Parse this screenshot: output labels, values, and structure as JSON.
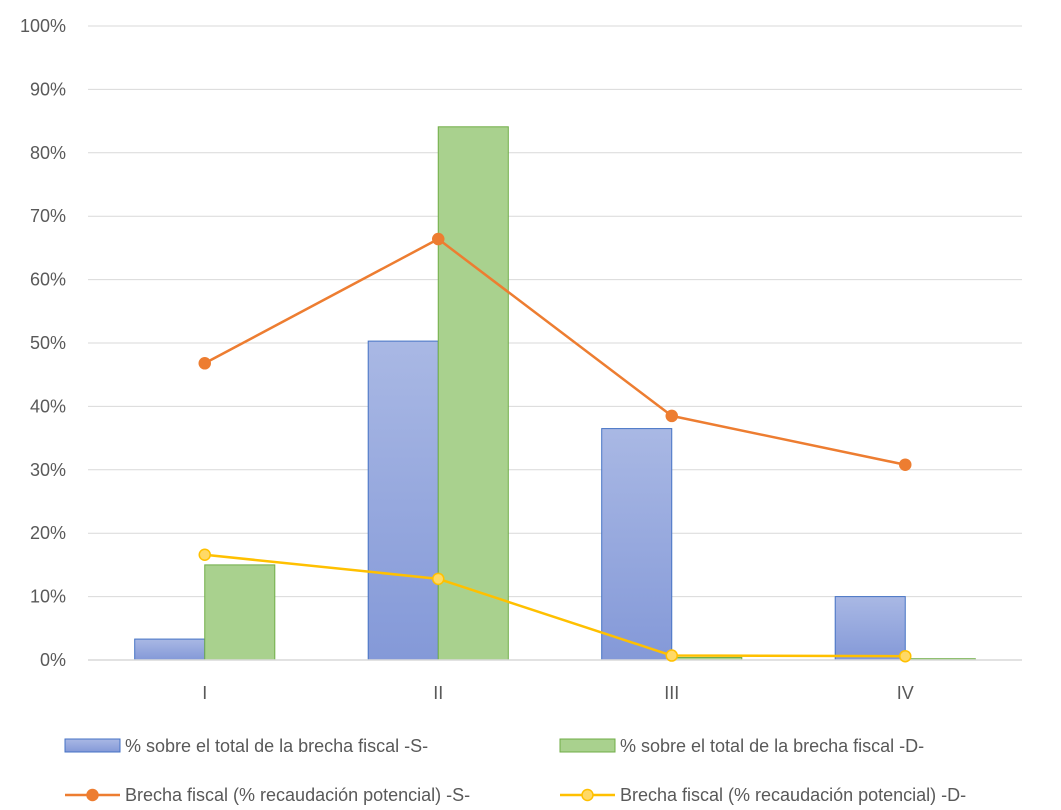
{
  "chart_data": {
    "type": "bar",
    "categories": [
      "I",
      "II",
      "III",
      "IV"
    ],
    "ylim": [
      0,
      100
    ],
    "yticks": [
      0,
      10,
      20,
      30,
      40,
      50,
      60,
      70,
      80,
      90,
      100
    ],
    "ytick_labels": [
      "0%",
      "10%",
      "20%",
      "30%",
      "40%",
      "50%",
      "60%",
      "70%",
      "80%",
      "90%",
      "100%"
    ],
    "grid": true,
    "legend_position": "bottom",
    "title": "",
    "xlabel": "",
    "ylabel": "",
    "series": [
      {
        "name": "% sobre el total de la brecha fiscal -S-",
        "kind": "bar",
        "color": "#8fa4dc",
        "values": [
          3.3,
          50.3,
          36.5,
          10.0
        ]
      },
      {
        "name": "% sobre el total de la brecha fiscal -D-",
        "kind": "bar",
        "color": "#a9d18e",
        "values": [
          15.0,
          84.1,
          0.4,
          0.2
        ]
      },
      {
        "name": "Brecha fiscal (% recaudación potencial) -S-",
        "kind": "line",
        "color": "#ed7d31",
        "values": [
          46.8,
          66.4,
          38.5,
          30.8
        ]
      },
      {
        "name": "Brecha fiscal (% recaudación potencial) -D-",
        "kind": "line",
        "color": "#ffc000",
        "marker_fill": "#ffd966",
        "values": [
          16.6,
          12.8,
          0.7,
          0.6
        ]
      }
    ]
  }
}
